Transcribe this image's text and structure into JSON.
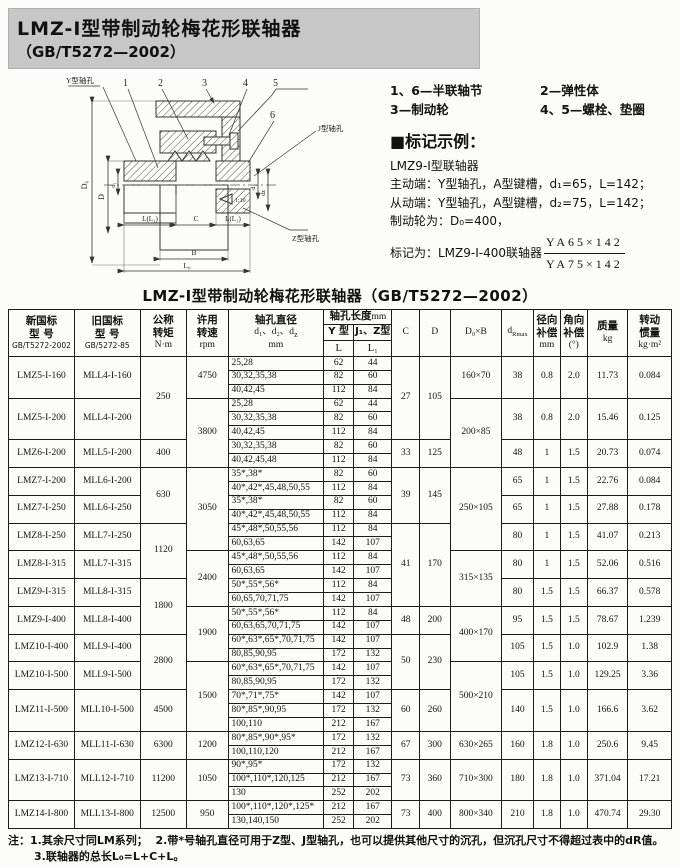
{
  "banner": {
    "title": "LMZ-Ⅰ型带制动轮梅花形联轴器",
    "gb": "（GB/T5272—2002）"
  },
  "legend": {
    "l1a": "1、6—半联轴节",
    "l1b": "2—弹性体",
    "l2a": "3—制动轮",
    "l2b": "4、5—螺栓、垫圈"
  },
  "marking": {
    "heading": "■标记示例：",
    "line1": "LMZ9-Ⅰ型联轴器",
    "line2": "主动端：Y型轴孔，A型键槽，d₁=65，L=142；",
    "line3": "从动端：Y型轴孔，A型键槽，d₂=75，L=142；",
    "line4": "制动轮为：D₀=400，",
    "line5": "标记为：LMZ9-Ⅰ-400联轴器",
    "frac_top": "YA65×142",
    "frac_bottom": "YA75×142"
  },
  "drawing": {
    "label_y_bore": "Y型轴孔",
    "label_j_bore": "J型轴孔",
    "label_z_bore": "Z型轴孔",
    "parts": [
      "1",
      "2",
      "3",
      "4",
      "5",
      "6"
    ],
    "taper": "1:10",
    "dim_d0": "D₀",
    "dim_d": "D",
    "dim_d1": "d₁",
    "dim_d2": "d₂",
    "dim_dz": "dz",
    "dim_l_left": "L(L₁)",
    "dim_c": "C",
    "dim_l_right": "L(L₁)",
    "dim_b": "B",
    "dim_l0": "L₀"
  },
  "table": {
    "title": "LMZ-Ⅰ型带制动轮梅花形联轴器（GB/T5272—2002）",
    "header": {
      "new1": "新国标",
      "new2": "型  号",
      "new3": "GB/T5272-2002",
      "old1": "旧国标",
      "old2": "型  号",
      "old3": "GB/5272-85",
      "torque1": "公称",
      "torque2": "转矩",
      "torque3": "N·m",
      "speed1": "许用",
      "speed2": "转速",
      "speed3": "rpm",
      "dia1": "轴孔直径",
      "dia2a": "d₁、d₂、d",
      "dia2b": "z",
      "dia3": "mm",
      "len1": "轴孔长度",
      "len2": "mm",
      "ytype": "Y 型",
      "jztype": "J₁、Z型",
      "L": "L",
      "L1": "L₁",
      "C": "C",
      "D": "D",
      "d0b": "D₀×B",
      "drmax_main": "d",
      "drmax_sub": "Rmax",
      "rad1": "径向",
      "rad2": "补偿",
      "rad3": "mm",
      "ang1": "角向",
      "ang2": "补偿",
      "ang3": "(°)",
      "mass1": "质量",
      "mass2": "kg",
      "inertia1": "转动",
      "inertia2": "惯量",
      "inertia3": "kg·m²"
    },
    "rows": [
      [
        [
          0,
          "LMZ5-I-160",
          3
        ],
        [
          1,
          "MLL4-I-160",
          3
        ],
        [
          2,
          "250",
          6
        ],
        [
          3,
          "4750",
          3
        ],
        [
          4,
          "25,28"
        ],
        [
          5,
          "62"
        ],
        [
          6,
          "44"
        ],
        [
          7,
          "27",
          6
        ],
        [
          8,
          "105",
          6
        ],
        [
          9,
          "160×70",
          3
        ],
        [
          10,
          "38",
          3
        ],
        [
          11,
          "0.8",
          3
        ],
        [
          12,
          "2.0",
          3
        ],
        [
          13,
          "11.73",
          3
        ],
        [
          14,
          "0.084",
          3
        ]
      ],
      [
        [
          4,
          "30,32,35,38"
        ],
        [
          5,
          "82"
        ],
        [
          6,
          "60"
        ]
      ],
      [
        [
          4,
          "40,42,45"
        ],
        [
          5,
          "112"
        ],
        [
          6,
          "84"
        ]
      ],
      [
        [
          0,
          "LMZ5-I-200",
          3
        ],
        [
          1,
          "MLL4-I-200",
          3
        ],
        [
          3,
          "3800",
          5
        ],
        [
          4,
          "25,28"
        ],
        [
          5,
          "62"
        ],
        [
          6,
          "44"
        ],
        [
          9,
          "200×85",
          5
        ],
        [
          10,
          "38",
          3
        ],
        [
          11,
          "0.8",
          3
        ],
        [
          12,
          "2.0",
          3
        ],
        [
          13,
          "15.46",
          3
        ],
        [
          14,
          "0.125",
          3
        ]
      ],
      [
        [
          4,
          "30,32,35,38"
        ],
        [
          5,
          "82"
        ],
        [
          6,
          "60"
        ]
      ],
      [
        [
          4,
          "40,42,45"
        ],
        [
          5,
          "112"
        ],
        [
          6,
          "84"
        ]
      ],
      [
        [
          0,
          "LMZ6-I-200",
          2
        ],
        [
          1,
          "MLL5-I-200",
          2
        ],
        [
          2,
          "400",
          2
        ],
        [
          4,
          "30,32,35,38"
        ],
        [
          5,
          "82"
        ],
        [
          6,
          "60"
        ],
        [
          7,
          "33",
          2
        ],
        [
          8,
          "125",
          2
        ],
        [
          10,
          "48",
          2
        ],
        [
          11,
          "1",
          2
        ],
        [
          12,
          "1.5",
          2
        ],
        [
          13,
          "20.73",
          2
        ],
        [
          14,
          "0.074",
          2
        ]
      ],
      [
        [
          4,
          "40,42,45,48"
        ],
        [
          5,
          "112"
        ],
        [
          6,
          "84"
        ]
      ],
      [
        [
          0,
          "LMZ7-I-200",
          2
        ],
        [
          1,
          "MLL6-I-200",
          2
        ],
        [
          2,
          "630",
          4
        ],
        [
          3,
          "3050",
          6
        ],
        [
          4,
          "35*,38*"
        ],
        [
          5,
          "82"
        ],
        [
          6,
          "60"
        ],
        [
          7,
          "39",
          4
        ],
        [
          8,
          "145",
          4
        ],
        [
          9,
          "250×105",
          6
        ],
        [
          10,
          "65",
          2
        ],
        [
          11,
          "1",
          2
        ],
        [
          12,
          "1.5",
          2
        ],
        [
          13,
          "22.76",
          2
        ],
        [
          14,
          "0.084",
          2
        ]
      ],
      [
        [
          4,
          "40*,42*,45,48,50,55"
        ],
        [
          5,
          "112"
        ],
        [
          6,
          "84"
        ]
      ],
      [
        [
          0,
          "LMZ7-I-250",
          2
        ],
        [
          1,
          "MLL6-I-250",
          2
        ],
        [
          4,
          "35*,38*"
        ],
        [
          5,
          "82"
        ],
        [
          6,
          "60"
        ],
        [
          10,
          "65",
          2
        ],
        [
          11,
          "1",
          2
        ],
        [
          12,
          "1.5",
          2
        ],
        [
          13,
          "27.88",
          2
        ],
        [
          14,
          "0.178",
          2
        ]
      ],
      [
        [
          4,
          "40*,42*,45,48,50,55"
        ],
        [
          5,
          "112"
        ],
        [
          6,
          "84"
        ]
      ],
      [
        [
          0,
          "LMZ8-I-250",
          2
        ],
        [
          1,
          "MLL7-I-250",
          2
        ],
        [
          2,
          "1120",
          4
        ],
        [
          4,
          "45*,48*,50,55,56"
        ],
        [
          5,
          "112"
        ],
        [
          6,
          "84"
        ],
        [
          7,
          "41",
          6
        ],
        [
          8,
          "170",
          6
        ],
        [
          10,
          "80",
          2
        ],
        [
          11,
          "1",
          2
        ],
        [
          12,
          "1.5",
          2
        ],
        [
          13,
          "41.07",
          2
        ],
        [
          14,
          "0.213",
          2
        ]
      ],
      [
        [
          4,
          "60,63,65"
        ],
        [
          5,
          "142"
        ],
        [
          6,
          "107"
        ]
      ],
      [
        [
          0,
          "LMZ8-I-315",
          2
        ],
        [
          1,
          "MLL7-I-315",
          2
        ],
        [
          3,
          "2400",
          4
        ],
        [
          4,
          "45*,48*,50,55,56"
        ],
        [
          5,
          "112"
        ],
        [
          6,
          "84"
        ],
        [
          9,
          "315×135",
          4
        ],
        [
          10,
          "80",
          2
        ],
        [
          11,
          "1",
          2
        ],
        [
          12,
          "1.5",
          2
        ],
        [
          13,
          "52.06",
          2
        ],
        [
          14,
          "0.516",
          2
        ]
      ],
      [
        [
          4,
          "60,63,65"
        ],
        [
          5,
          "142"
        ],
        [
          6,
          "107"
        ]
      ],
      [
        [
          0,
          "LMZ9-I-315",
          2
        ],
        [
          1,
          "MLL8-I-315",
          2
        ],
        [
          2,
          "1800",
          4
        ],
        [
          4,
          "50*,55*,56*"
        ],
        [
          5,
          "112"
        ],
        [
          6,
          "84"
        ],
        [
          10,
          "80",
          2
        ],
        [
          11,
          "1.5",
          2
        ],
        [
          12,
          "1.5",
          2
        ],
        [
          13,
          "66.37",
          2
        ],
        [
          14,
          "0.578",
          2
        ]
      ],
      [
        [
          4,
          "60,65,70,71,75"
        ],
        [
          5,
          "142"
        ],
        [
          6,
          "107"
        ]
      ],
      [
        [
          0,
          "LMZ9-I-400",
          2
        ],
        [
          1,
          "MLL8-I-400",
          2
        ],
        [
          3,
          "1900",
          4
        ],
        [
          4,
          "50*,55*,56*"
        ],
        [
          5,
          "112"
        ],
        [
          6,
          "84"
        ],
        [
          7,
          "48",
          2
        ],
        [
          8,
          "200",
          2
        ],
        [
          9,
          "400×170",
          4
        ],
        [
          10,
          "95",
          2
        ],
        [
          11,
          "1.5",
          2
        ],
        [
          12,
          "1.5",
          2
        ],
        [
          13,
          "78.67",
          2
        ],
        [
          14,
          "1.239",
          2
        ]
      ],
      [
        [
          4,
          "60,63,65,70,71,75"
        ],
        [
          5,
          "142"
        ],
        [
          6,
          "107"
        ]
      ],
      [
        [
          0,
          "LMZ10-I-400",
          2
        ],
        [
          1,
          "MLL9-I-400",
          2
        ],
        [
          2,
          "2800",
          4
        ],
        [
          4,
          "60*,63*,65*,70,71,75"
        ],
        [
          5,
          "142"
        ],
        [
          6,
          "107"
        ],
        [
          7,
          "50",
          4
        ],
        [
          8,
          "230",
          4
        ],
        [
          10,
          "105",
          2
        ],
        [
          11,
          "1.5",
          2
        ],
        [
          12,
          "1.0",
          2
        ],
        [
          13,
          "102.9",
          2
        ],
        [
          14,
          "1.38",
          2
        ]
      ],
      [
        [
          4,
          "80,85,90,95"
        ],
        [
          5,
          "172"
        ],
        [
          6,
          "132"
        ]
      ],
      [
        [
          0,
          "LMZ10-I-500",
          2
        ],
        [
          1,
          "MLL9-I-500",
          2
        ],
        [
          3,
          "1500",
          5
        ],
        [
          4,
          "60*,63*,65*,70,71,75"
        ],
        [
          5,
          "142"
        ],
        [
          6,
          "107"
        ],
        [
          9,
          "500×210",
          5
        ],
        [
          10,
          "105",
          2
        ],
        [
          11,
          "1.5",
          2
        ],
        [
          12,
          "1.0",
          2
        ],
        [
          13,
          "129.25",
          2
        ],
        [
          14,
          "3.36",
          2
        ]
      ],
      [
        [
          4,
          "80,85,90,95"
        ],
        [
          5,
          "172"
        ],
        [
          6,
          "132"
        ]
      ],
      [
        [
          0,
          "LMZ11-I-500",
          3
        ],
        [
          1,
          "MLL10-I-500",
          3
        ],
        [
          2,
          "4500",
          3
        ],
        [
          4,
          "70*,71*,75*"
        ],
        [
          5,
          "142"
        ],
        [
          6,
          "107"
        ],
        [
          7,
          "60",
          3
        ],
        [
          8,
          "260",
          3
        ],
        [
          10,
          "140",
          3
        ],
        [
          11,
          "1.5",
          3
        ],
        [
          12,
          "1.0",
          3
        ],
        [
          13,
          "166.6",
          3
        ],
        [
          14,
          "3.62",
          3
        ]
      ],
      [
        [
          4,
          "80*,85*,90,95"
        ],
        [
          5,
          "172"
        ],
        [
          6,
          "132"
        ]
      ],
      [
        [
          4,
          "100,110"
        ],
        [
          5,
          "212"
        ],
        [
          6,
          "167"
        ]
      ],
      [
        [
          0,
          "LMZ12-I-630",
          2
        ],
        [
          1,
          "MLL11-I-630",
          2
        ],
        [
          2,
          "6300",
          2
        ],
        [
          3,
          "1200",
          2
        ],
        [
          4,
          "80*,85*,90*,95*"
        ],
        [
          5,
          "172"
        ],
        [
          6,
          "132"
        ],
        [
          7,
          "67",
          2
        ],
        [
          8,
          "300",
          2
        ],
        [
          9,
          "630×265",
          2
        ],
        [
          10,
          "160",
          2
        ],
        [
          11,
          "1.8",
          2
        ],
        [
          12,
          "1.0",
          2
        ],
        [
          13,
          "250.6",
          2
        ],
        [
          14,
          "9.45",
          2
        ]
      ],
      [
        [
          4,
          "100,110,120"
        ],
        [
          5,
          "212"
        ],
        [
          6,
          "167"
        ]
      ],
      [
        [
          0,
          "LMZ13-I-710",
          3
        ],
        [
          1,
          "MLL12-I-710",
          3
        ],
        [
          2,
          "11200",
          3
        ],
        [
          3,
          "1050",
          3
        ],
        [
          4,
          "90*,95*"
        ],
        [
          5,
          "172"
        ],
        [
          6,
          "132"
        ],
        [
          7,
          "73",
          3
        ],
        [
          8,
          "360",
          3
        ],
        [
          9,
          "710×300",
          3
        ],
        [
          10,
          "180",
          3
        ],
        [
          11,
          "1.8",
          3
        ],
        [
          12,
          "1.0",
          3
        ],
        [
          13,
          "371.04",
          3
        ],
        [
          14,
          "17.21",
          3
        ]
      ],
      [
        [
          4,
          "100*,110*,120,125"
        ],
        [
          5,
          "212"
        ],
        [
          6,
          "167"
        ]
      ],
      [
        [
          4,
          "130"
        ],
        [
          5,
          "252"
        ],
        [
          6,
          "202"
        ]
      ],
      [
        [
          0,
          "LMZ14-I-800",
          2
        ],
        [
          1,
          "MLL13-I-800",
          2
        ],
        [
          2,
          "12500",
          2
        ],
        [
          3,
          "950",
          2
        ],
        [
          4,
          "100*,110*,120*,125*"
        ],
        [
          5,
          "212"
        ],
        [
          6,
          "167"
        ],
        [
          7,
          "73",
          2
        ],
        [
          8,
          "400",
          2
        ],
        [
          9,
          "800×340",
          2
        ],
        [
          10,
          "210",
          2
        ],
        [
          11,
          "1.8",
          2
        ],
        [
          12,
          "1.0",
          2
        ],
        [
          13,
          "470.74",
          2
        ],
        [
          14,
          "29.30",
          2
        ]
      ],
      [
        [
          4,
          "130,140,150"
        ],
        [
          5,
          "252"
        ],
        [
          6,
          "202"
        ]
      ]
    ]
  },
  "notes": {
    "prefix": "注：",
    "item1": "1.其余尺寸同LM系列；",
    "item2": "2.带*号轴孔直径可用于Z型、J型轴孔，也可以提供其他尺寸的沉孔，但沉孔尺寸不得超过表中的dR值。",
    "item3": "3.联轴器的总长L₀=L+C+L。"
  }
}
